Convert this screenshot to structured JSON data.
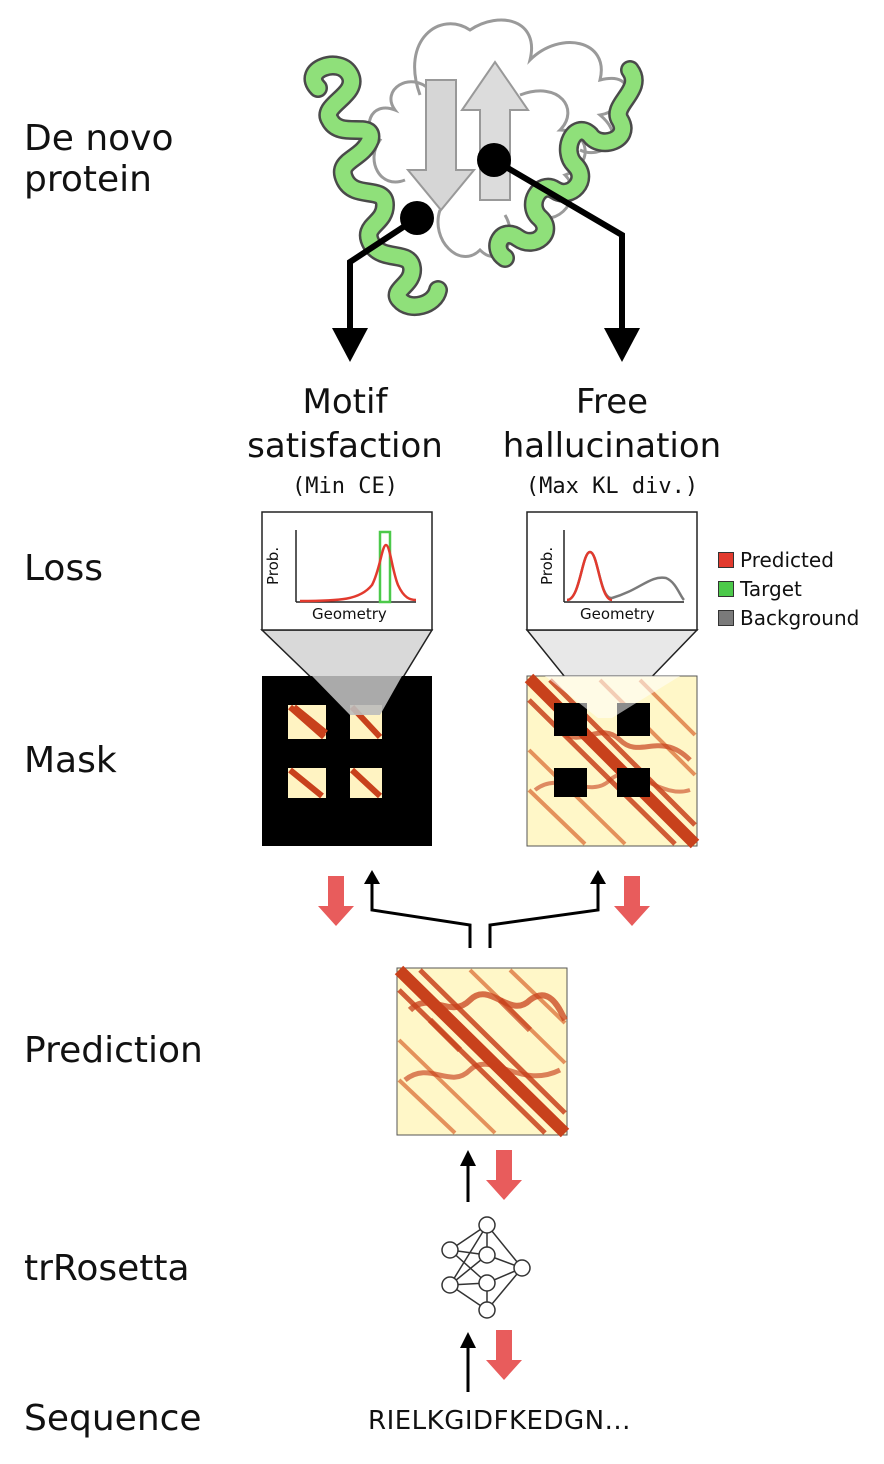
{
  "rows": {
    "protein": "De novo\nprotein",
    "loss": "Loss",
    "mask": "Mask",
    "prediction": "Prediction",
    "network": "trRosetta",
    "sequence": "Sequence"
  },
  "columns": {
    "motif": {
      "title": "Motif\nsatisfaction",
      "sub": "(Min CE)"
    },
    "free": {
      "title": "Free\nhallucination",
      "sub": "(Max KL div.)"
    }
  },
  "loss_plot": {
    "ylabel": "Prob.",
    "xlabel": "Geometry"
  },
  "legend": [
    {
      "label": "Predicted",
      "color": "#e23a2e"
    },
    {
      "label": "Target",
      "color": "#4cc94a"
    },
    {
      "label": "Background",
      "color": "#7a7a7a"
    }
  ],
  "sequence_text": "RIELKGIDFKEDGN...",
  "colors": {
    "helix": "#8fe07a",
    "map_bg": "#fff7c8",
    "map_contact": "#c8411c",
    "update_arrow": "#e85c5c"
  }
}
